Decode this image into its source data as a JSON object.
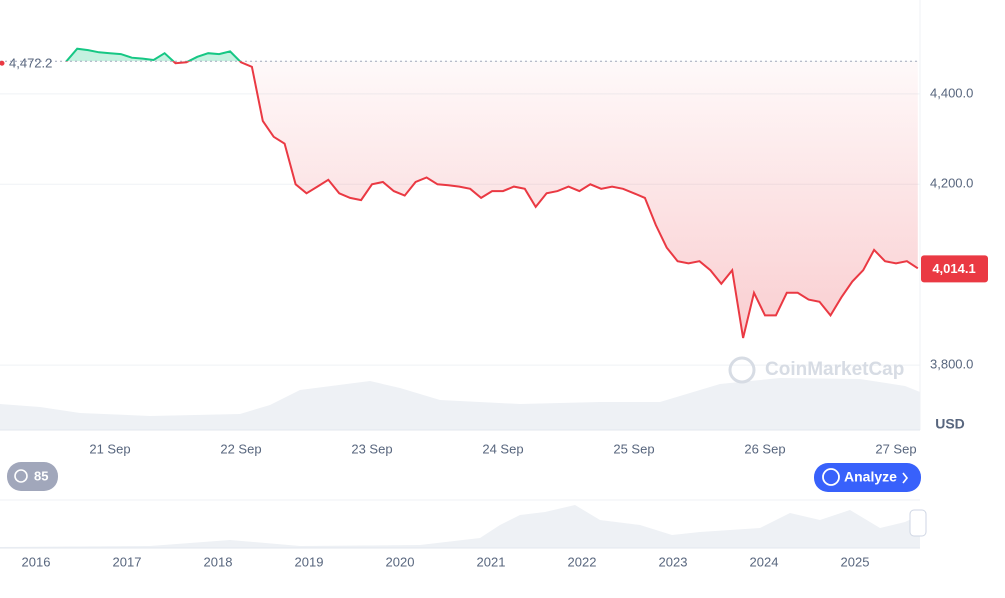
{
  "chart_data": {
    "type": "line",
    "categories": [
      null,
      null,
      null,
      null,
      "21 Sep",
      null,
      null,
      null,
      null,
      null,
      null,
      null,
      null,
      null,
      null,
      null,
      "22 Sep",
      null,
      null,
      null,
      null,
      null,
      null,
      null,
      null,
      null,
      null,
      null,
      "23 Sep",
      null,
      null,
      null,
      null,
      null,
      null,
      null,
      null,
      null,
      null,
      null,
      "24 Sep",
      null,
      null,
      null,
      null,
      null,
      null,
      null,
      null,
      null,
      null,
      null,
      "25 Sep",
      null,
      null,
      null,
      null,
      null,
      null,
      null,
      null,
      null,
      null,
      null,
      "26 Sep",
      null,
      null,
      null,
      null,
      null,
      null,
      null,
      null,
      null,
      null,
      null,
      "27 Sep",
      null,
      null
    ],
    "values": [
      4472,
      4500,
      4497,
      4492,
      4490,
      4488,
      4480,
      4478,
      4475,
      4490,
      4468,
      4470,
      4482,
      4490,
      4488,
      4494,
      4470,
      4460,
      4340,
      4305,
      4290,
      4200,
      4180,
      4195,
      4210,
      4180,
      4170,
      4165,
      4200,
      4205,
      4185,
      4175,
      4205,
      4215,
      4200,
      4198,
      4195,
      4190,
      4170,
      4185,
      4185,
      4195,
      4190,
      4150,
      4180,
      4185,
      4195,
      4185,
      4200,
      4190,
      4195,
      4190,
      4180,
      4170,
      4110,
      4060,
      4030,
      4025,
      4030,
      4010,
      3980,
      4010,
      3860,
      3960,
      3910,
      3910,
      3960,
      3960,
      3945,
      3940,
      3910,
      3950,
      3985,
      4010,
      4055,
      4030,
      4025,
      4030,
      4014.1
    ],
    "last_value_label": "4,014.1",
    "reference_value": 4472.2,
    "reference_label": "4,472.2",
    "color_up": "#16c784",
    "color_down": "#ea3943",
    "ylim": [
      3660,
      4600
    ],
    "yticks": [
      {
        "value": 3800,
        "label": "3,800.0"
      },
      {
        "value": 4200,
        "label": "4,200.0"
      },
      {
        "value": 4400,
        "label": "4,400.0"
      }
    ],
    "grid": true,
    "unit": "USD"
  },
  "watermark": "CoinMarketCap",
  "history_count": "85",
  "analyze_button": "Analyze",
  "navigator": {
    "labels": [
      "2016",
      "2017",
      "2018",
      "2019",
      "2020",
      "2021",
      "2022",
      "2023",
      "2024",
      "2025"
    ]
  }
}
